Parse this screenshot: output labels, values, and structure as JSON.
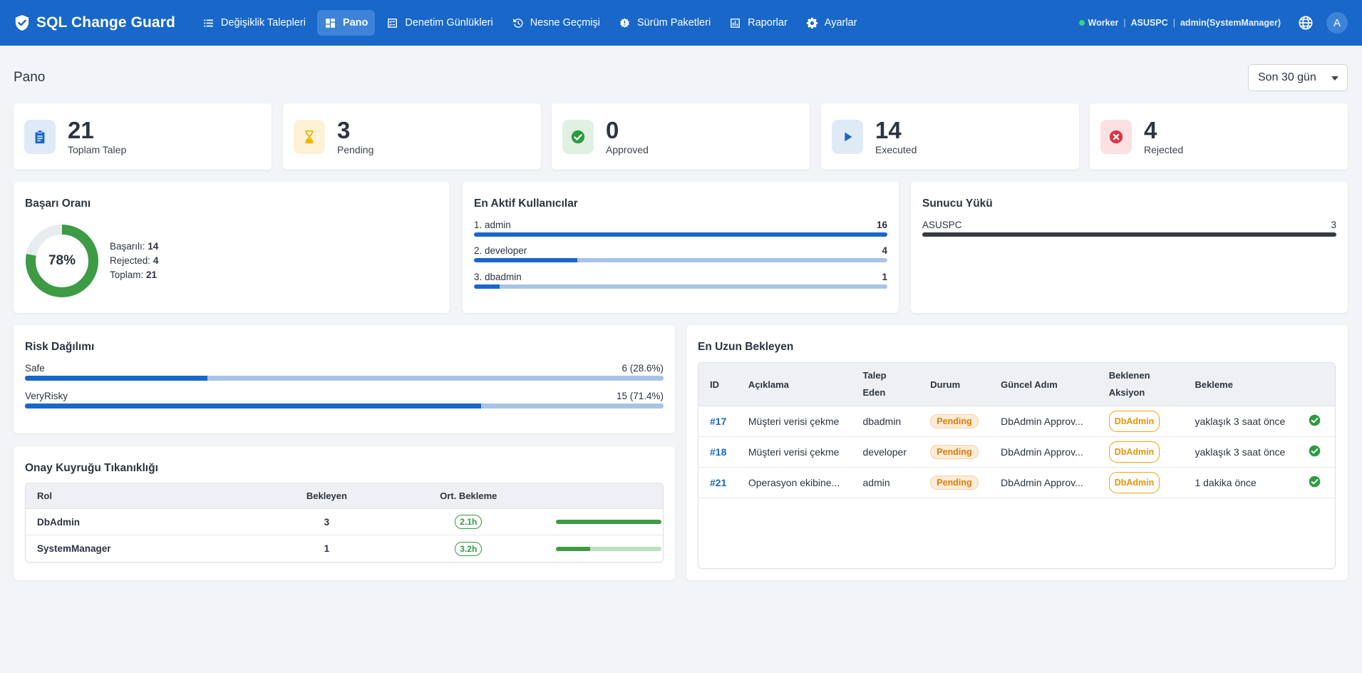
{
  "app": {
    "title": "SQL Change Guard"
  },
  "nav": {
    "items": [
      {
        "label": "Değişiklik Talepleri",
        "icon": "list-icon"
      },
      {
        "label": "Pano",
        "icon": "dashboard-icon"
      },
      {
        "label": "Denetim Günlükleri",
        "icon": "checklist-icon"
      },
      {
        "label": "Nesne Geçmişi",
        "icon": "history-icon"
      },
      {
        "label": "Sürüm Paketleri",
        "icon": "package-icon"
      },
      {
        "label": "Raporlar",
        "icon": "chart-icon"
      },
      {
        "label": "Ayarlar",
        "icon": "gear-icon"
      }
    ],
    "active": "Pano"
  },
  "status": {
    "worker": "Worker",
    "host": "ASUSPC",
    "user": "admin(SystemManager)"
  },
  "avatar": "A",
  "page": {
    "title": "Pano",
    "range": "Son 30 gün"
  },
  "stats": [
    {
      "value": "21",
      "label": "Toplam Talep",
      "icon": "clipboard-icon",
      "bg": "#dfeaf7",
      "color": "#1867c9"
    },
    {
      "value": "3",
      "label": "Pending",
      "icon": "hourglass-icon",
      "bg": "#fdf2d6",
      "color": "#f0b400"
    },
    {
      "value": "0",
      "label": "Approved",
      "icon": "check-circle-icon",
      "bg": "#e0f0e2",
      "color": "#2f9a3f"
    },
    {
      "value": "14",
      "label": "Executed",
      "icon": "play-icon",
      "bg": "#dfeaf7",
      "color": "#1867c9"
    },
    {
      "value": "4",
      "label": "Rejected",
      "icon": "x-circle-icon",
      "bg": "#fbe1e2",
      "color": "#dc3545"
    }
  ],
  "success": {
    "title": "Başarı Oranı",
    "percent_label": "78%",
    "percent": 0.78,
    "success_label": "Başarılı:",
    "success_value": "14",
    "rejected_label": "Rejected:",
    "rejected_value": "4",
    "total_label": "Toplam:",
    "total_value": "21"
  },
  "active_users": {
    "title": "En Aktif Kullanıcılar",
    "rows": [
      {
        "label": "1. admin",
        "value": "16",
        "fraction": 1.0
      },
      {
        "label": "2. developer",
        "value": "4",
        "fraction": 0.25
      },
      {
        "label": "3. dbadmin",
        "value": "1",
        "fraction": 0.0625
      }
    ]
  },
  "server_load": {
    "title": "Sunucu Yükü",
    "rows": [
      {
        "label": "ASUSPC",
        "value": "3",
        "fraction": 1.0
      }
    ]
  },
  "risk": {
    "title": "Risk Dağılımı",
    "rows": [
      {
        "label": "Safe",
        "value": "6 (28.6%)",
        "fraction": 0.286
      },
      {
        "label": "VeryRisky",
        "value": "15 (71.4%)",
        "fraction": 0.714
      }
    ]
  },
  "queue": {
    "title": "Onay Kuyruğu Tıkanıklığı",
    "headers": {
      "role": "Rol",
      "waiting": "Bekleyen",
      "avg": "Ort. Bekleme"
    },
    "rows": [
      {
        "role": "DbAdmin",
        "waiting": "3",
        "avg": "2.1h",
        "fraction": 1.0
      },
      {
        "role": "SystemManager",
        "waiting": "1",
        "avg": "3.2h",
        "fraction": 0.33
      }
    ]
  },
  "longest": {
    "title": "En Uzun Bekleyen",
    "headers": {
      "id": "ID",
      "desc": "Açıklama",
      "requester": "Talep Eden",
      "status": "Durum",
      "step": "Güncel Adım",
      "action": "Beklenen Aksiyon",
      "wait": "Bekleme"
    },
    "rows": [
      {
        "id": "#17",
        "desc": "Müşteri verisi çekme",
        "requester": "dbadmin",
        "status": "Pending",
        "step": "DbAdmin Approv...",
        "action": "DbAdmin",
        "wait": "yaklaşık 3 saat önce"
      },
      {
        "id": "#18",
        "desc": "Müşteri verisi çekme",
        "requester": "developer",
        "status": "Pending",
        "step": "DbAdmin Approv...",
        "action": "DbAdmin",
        "wait": "yaklaşık 3 saat önce"
      },
      {
        "id": "#21",
        "desc": "Operasyon ekibine...",
        "requester": "admin",
        "status": "Pending",
        "step": "DbAdmin Approv...",
        "action": "DbAdmin",
        "wait": "1 dakika önce"
      }
    ]
  }
}
